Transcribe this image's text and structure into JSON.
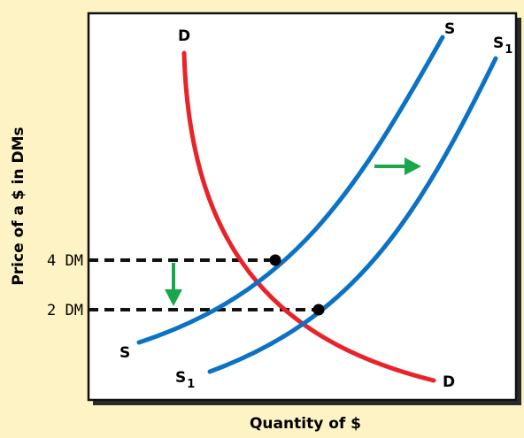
{
  "chart_data": {
    "type": "line",
    "xlabel": "Quantity of $",
    "ylabel": "Price of a $ in DMs",
    "y_ticks": [
      "4 DM",
      "2 DM"
    ],
    "curves": [
      {
        "label": "D",
        "color": "#e8232a"
      },
      {
        "label": "S",
        "color": "#0b72c4"
      },
      {
        "label": "S",
        "sub": "1",
        "color": "#0b72c4"
      }
    ],
    "equilibria": [
      {
        "price": "4 DM",
        "curves": [
          "D",
          "S"
        ]
      },
      {
        "price": "2 DM",
        "curves": [
          "D",
          "S1"
        ]
      }
    ],
    "arrows": [
      {
        "direction": "right",
        "meaning": "supply shift",
        "color": "#1aa64b"
      },
      {
        "direction": "down",
        "meaning": "price fall",
        "color": "#1aa64b"
      }
    ],
    "grid": false,
    "legend": "none",
    "background": "#fef3c4",
    "plot_background": "#ffffff"
  }
}
